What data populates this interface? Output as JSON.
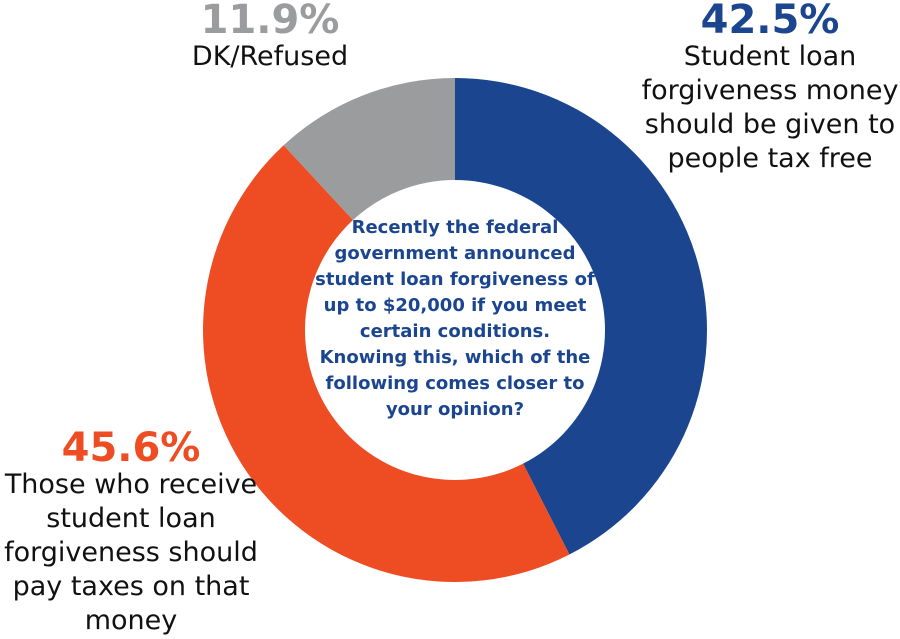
{
  "chart_data": {
    "type": "donut",
    "title": "Recently the federal government announced student loan forgiveness of up to $20,000 if you meet certain conditions. Knowing this, which of the following comes closer to your opinion?",
    "categories": [
      "Student loan forgiveness money should be given to people tax free",
      "Those who receive student loan forgiveness should pay taxes on that money",
      "DK/Refused"
    ],
    "values": [
      42.5,
      45.6,
      11.9
    ],
    "value_labels": [
      "42.5%",
      "45.6%",
      "11.9%"
    ],
    "colors": [
      "#1b468f",
      "#ee4d23",
      "#9b9c9e"
    ]
  }
}
